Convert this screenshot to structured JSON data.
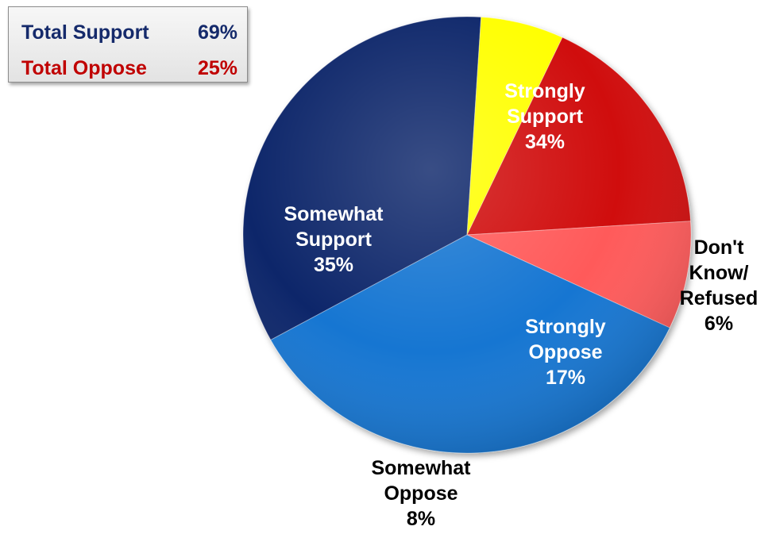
{
  "summary": {
    "support_label": "Total Support",
    "support_value": "69%",
    "oppose_label": "Total Oppose",
    "oppose_value": "25%"
  },
  "chart_data": {
    "type": "pie",
    "title": "",
    "start_category": "Strongly Support",
    "direction": "clockwise",
    "slices": [
      {
        "label_lines": [
          "Strongly",
          "Support"
        ],
        "category": "Strongly Support",
        "value": 34,
        "value_label": "34%",
        "color": "#10266b",
        "text_color": "#ffffff"
      },
      {
        "label_lines": [
          "Don't",
          "Know/",
          "Refused"
        ],
        "category": "Don't Know/ Refused",
        "value": 6,
        "value_label": "6%",
        "color": "#ffff00",
        "text_color": "#000000"
      },
      {
        "label_lines": [
          "Strongly",
          "Oppose"
        ],
        "category": "Strongly Oppose",
        "value": 17,
        "value_label": "17%",
        "color": "#d00a0a",
        "text_color": "#ffffff"
      },
      {
        "label_lines": [
          "Somewhat",
          "Oppose"
        ],
        "category": "Somewhat Oppose",
        "value": 8,
        "value_label": "8%",
        "color": "#ff5a5a",
        "text_color": "#000000"
      },
      {
        "label_lines": [
          "Somewhat",
          "Support"
        ],
        "category": "Somewhat Support",
        "value": 35,
        "value_label": "35%",
        "color": "#1476d2",
        "text_color": "#ffffff"
      }
    ]
  }
}
